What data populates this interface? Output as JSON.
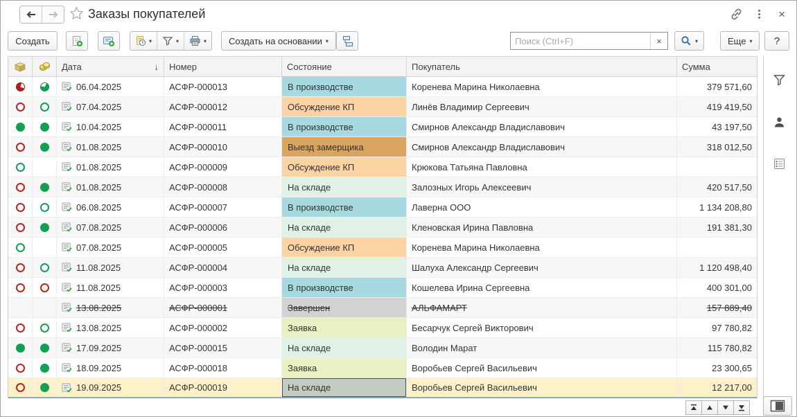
{
  "window": {
    "title": "Заказы покупателей",
    "back_icon": "back-arrow",
    "forward_icon": "forward-arrow",
    "star_icon": "favorite-star",
    "link_icon": "get-link",
    "menu_icon": "kebab-menu",
    "close_label": "×"
  },
  "toolbar": {
    "create_label": "Создать",
    "create_based_label": "Создать на основании",
    "more_label": "Еще",
    "help_label": "?",
    "search": {
      "placeholder": "Поиск (Ctrl+F)",
      "value": "",
      "clear_label": "×"
    },
    "caret": "▾"
  },
  "table": {
    "columns": {
      "date": "Дата",
      "number": "Номер",
      "state": "Состояние",
      "buyer": "Покупатель",
      "sum": "Сумма"
    },
    "sort_arrow": "↓",
    "status_colors": {
      "production": "#a6d9e0",
      "discussion": "#fcd3a5",
      "measurer": "#d9a360",
      "warehouse": "#e0f1e6",
      "done": "#d2d2d2",
      "request": "#e9f0c2"
    },
    "indicator_colors": {
      "red": "#c02020",
      "green": "#11a053"
    },
    "selected_row_color": "#fcf1c9",
    "rows": [
      {
        "ship": "red-pie",
        "pay": "green-pie",
        "date": "06.04.2025",
        "number": "АСФР-000013",
        "status": "В производстве",
        "status_key": "production",
        "buyer": "Коренева Марина Николаевна",
        "amount": "379 571,60",
        "struck": false,
        "selected": false
      },
      {
        "ship": "red-hollow",
        "pay": "green-hollow",
        "date": "07.04.2025",
        "number": "АСФР-000012",
        "status": "Обсуждение КП",
        "status_key": "discussion",
        "buyer": "Линёв Владимир Сергеевич",
        "amount": "419 419,50",
        "struck": false,
        "selected": false
      },
      {
        "ship": "green-full",
        "pay": "green-full",
        "date": "10.04.2025",
        "number": "АСФР-000011",
        "status": "В производстве",
        "status_key": "production",
        "buyer": "Смирнов Александр Владиславович",
        "amount": "43 197,50",
        "struck": false,
        "selected": false
      },
      {
        "ship": "red-hollow",
        "pay": "green-full",
        "date": "01.08.2025",
        "number": "АСФР-000010",
        "status": "Выезд замерщика",
        "status_key": "measurer",
        "buyer": "Смирнов Александр Владиславович",
        "amount": "318 012,50",
        "struck": false,
        "selected": false
      },
      {
        "ship": "green-hollow",
        "pay": "none",
        "date": "01.08.2025",
        "number": "АСФР-000009",
        "status": "Обсуждение КП",
        "status_key": "discussion",
        "buyer": "Крюкова Татьяна Павловна",
        "amount": "",
        "struck": false,
        "selected": false
      },
      {
        "ship": "red-hollow",
        "pay": "green-full",
        "date": "01.08.2025",
        "number": "АСФР-000008",
        "status": "На складе",
        "status_key": "warehouse",
        "buyer": "Залозных Игорь Алексеевич",
        "amount": "420 517,50",
        "struck": false,
        "selected": false
      },
      {
        "ship": "red-hollow",
        "pay": "green-hollow",
        "date": "06.08.2025",
        "number": "АСФР-000007",
        "status": "В производстве",
        "status_key": "production",
        "buyer": "Лаверна ООО",
        "amount": "1 134 208,80",
        "struck": false,
        "selected": false
      },
      {
        "ship": "red-hollow",
        "pay": "green-full",
        "date": "07.08.2025",
        "number": "АСФР-000006",
        "status": "На складе",
        "status_key": "warehouse",
        "buyer": "Кленовская Ирина Павловна",
        "amount": "191 381,30",
        "struck": false,
        "selected": false
      },
      {
        "ship": "green-hollow",
        "pay": "none",
        "date": "07.08.2025",
        "number": "АСФР-000005",
        "status": "Обсуждение КП",
        "status_key": "discussion",
        "buyer": "Коренева Марина Николаевна",
        "amount": "",
        "struck": false,
        "selected": false
      },
      {
        "ship": "red-hollow",
        "pay": "green-hollow",
        "date": "11.08.2025",
        "number": "АСФР-000004",
        "status": "На складе",
        "status_key": "warehouse",
        "buyer": "Шалуха Александр Сергеевич",
        "amount": "1 120 498,40",
        "struck": false,
        "selected": false
      },
      {
        "ship": "red-hollow",
        "pay": "red-hollow",
        "date": "11.08.2025",
        "number": "АСФР-000003",
        "status": "В производстве",
        "status_key": "production",
        "buyer": "Кошелева Ирина Сергеевна",
        "amount": "400 301,00",
        "struck": false,
        "selected": false
      },
      {
        "ship": "none",
        "pay": "none",
        "date": "13.08.2025",
        "number": "АСФР-000001",
        "status": "Завершен",
        "status_key": "done",
        "buyer": "АЛЬФАМАРТ",
        "amount": "157 889,40",
        "struck": true,
        "selected": false
      },
      {
        "ship": "red-hollow",
        "pay": "green-hollow",
        "date": "13.08.2025",
        "number": "АСФР-000002",
        "status": "Заявка",
        "status_key": "request",
        "buyer": "Бесарчук Сергей Викторович",
        "amount": "97 780,82",
        "struck": false,
        "selected": false
      },
      {
        "ship": "green-full",
        "pay": "green-full",
        "date": "17.09.2025",
        "number": "АСФР-000015",
        "status": "На складе",
        "status_key": "warehouse",
        "buyer": "Володин Марат",
        "amount": "115 780,82",
        "struck": false,
        "selected": false
      },
      {
        "ship": "red-hollow",
        "pay": "green-full",
        "date": "18.09.2025",
        "number": "АСФР-000018",
        "status": "Заявка",
        "status_key": "request",
        "buyer": "Воробьев Сергей Васильевич",
        "amount": "23 300,65",
        "struck": false,
        "selected": false
      },
      {
        "ship": "red-hollow",
        "pay": "green-full",
        "date": "19.09.2025",
        "number": "АСФР-000019",
        "status": "На складе",
        "status_key": "warehouse",
        "buyer": "Воробьев Сергей Васильевич",
        "amount": "12 217,00",
        "struck": false,
        "selected": true
      }
    ]
  },
  "sidebar": {
    "icons": [
      "filter-funnel",
      "responsible-person",
      "status-list"
    ]
  },
  "footer": {
    "nav_icons": [
      "go-to-top",
      "go-up",
      "go-down",
      "go-to-bottom"
    ],
    "panel_toggle_icon": "side-panel-toggle"
  }
}
